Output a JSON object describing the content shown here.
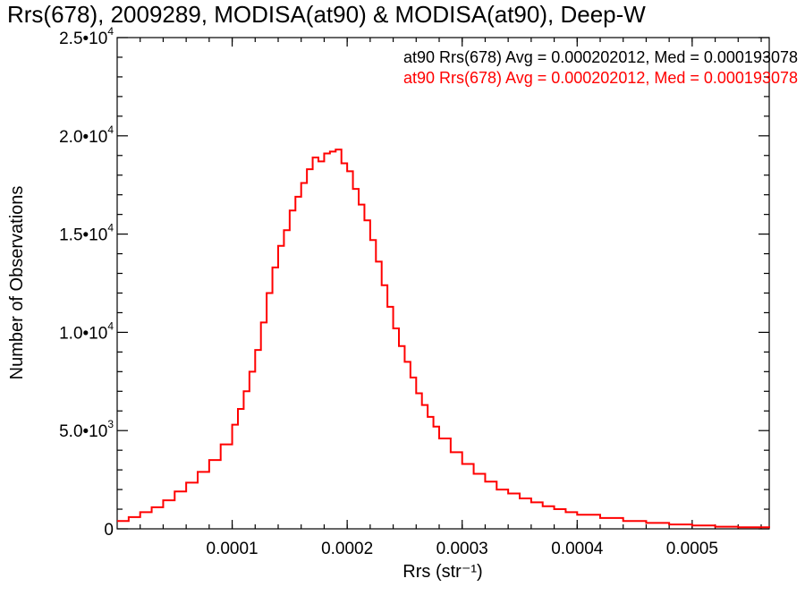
{
  "chart_data": {
    "type": "histogram",
    "title": "Rrs(678), 2009289, MODISA(at90) & MODISA(at90), Deep-W",
    "xlabel": "Rrs (str⁻¹)",
    "ylabel": "Number of Observations",
    "xlim": [
      0.0,
      0.000567
    ],
    "ylim": [
      0,
      25000
    ],
    "x_ticks": [
      {
        "value": 0.0001,
        "label": "0.0001"
      },
      {
        "value": 0.0002,
        "label": "0.0002"
      },
      {
        "value": 0.0003,
        "label": "0.0003"
      },
      {
        "value": 0.0004,
        "label": "0.0004"
      },
      {
        "value": 0.0005,
        "label": "0.0005"
      }
    ],
    "y_ticks": [
      {
        "value": 0,
        "mantissa": "0",
        "exponent": ""
      },
      {
        "value": 5000,
        "mantissa": "5.0•10",
        "exponent": "3"
      },
      {
        "value": 10000,
        "mantissa": "1.0•10",
        "exponent": "4"
      },
      {
        "value": 15000,
        "mantissa": "1.5•10",
        "exponent": "4"
      },
      {
        "value": 20000,
        "mantissa": "2.0•10",
        "exponent": "4"
      },
      {
        "value": 25000,
        "mantissa": "2.5•10",
        "exponent": "4"
      }
    ],
    "legend_position": "top-right",
    "annotations": [
      {
        "text": "at90 Rrs(678) Avg = 0.000202012, Med = 0.000193078",
        "color": "#000000"
      },
      {
        "text": "at90 Rrs(678) Avg = 0.000202012, Med = 0.000193078",
        "color": "#ff0000"
      }
    ],
    "series": [
      {
        "color": "#ff0000",
        "x": [
          0.0,
          1e-05,
          2e-05,
          3e-05,
          4e-05,
          5e-05,
          6e-05,
          7e-05,
          8e-05,
          9e-05,
          0.0001,
          0.000105,
          0.00011,
          0.000115,
          0.00012,
          0.000125,
          0.00013,
          0.000135,
          0.00014,
          0.000145,
          0.00015,
          0.000155,
          0.00016,
          0.000165,
          0.00017,
          0.000175,
          0.00018,
          0.000185,
          0.00019,
          0.000195,
          0.0002,
          0.000205,
          0.00021,
          0.000215,
          0.00022,
          0.000225,
          0.00023,
          0.000235,
          0.00024,
          0.000245,
          0.00025,
          0.000255,
          0.00026,
          0.000265,
          0.00027,
          0.000275,
          0.00028,
          0.00029,
          0.0003,
          0.00031,
          0.00032,
          0.00033,
          0.00034,
          0.00035,
          0.00036,
          0.00037,
          0.00038,
          0.00039,
          0.0004,
          0.00042,
          0.00044,
          0.00046,
          0.00048,
          0.0005,
          0.00052,
          0.00054,
          0.000567
        ],
        "y": [
          400,
          600,
          850,
          1100,
          1450,
          1900,
          2350,
          2900,
          3500,
          4300,
          5300,
          6100,
          7000,
          8000,
          9100,
          10500,
          12000,
          13300,
          14400,
          15200,
          16200,
          16900,
          17600,
          18300,
          18900,
          18700,
          19100,
          19200,
          19300,
          18600,
          18200,
          17300,
          16500,
          15700,
          14700,
          13600,
          12400,
          11300,
          10200,
          9300,
          8500,
          7700,
          6900,
          6300,
          5700,
          5200,
          4600,
          3900,
          3300,
          2800,
          2400,
          2000,
          1800,
          1550,
          1350,
          1150,
          1000,
          850,
          720,
          550,
          400,
          300,
          220,
          170,
          110,
          80,
          50
        ]
      }
    ]
  }
}
